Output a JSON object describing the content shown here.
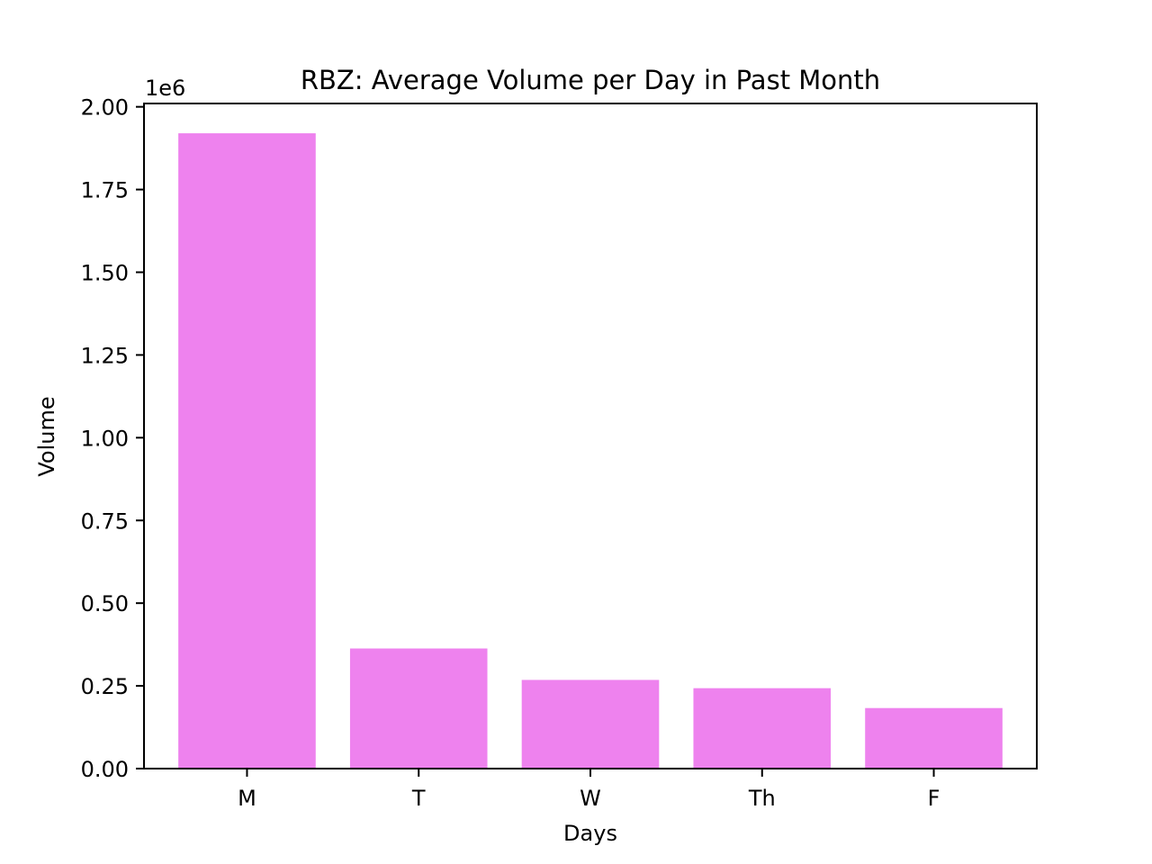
{
  "chart_data": {
    "type": "bar",
    "title": "RBZ: Average Volume per Day in Past Month",
    "xlabel": "Days",
    "ylabel": "Volume",
    "categories": [
      "M",
      "T",
      "W",
      "Th",
      "F"
    ],
    "values": [
      1920000,
      363000,
      268000,
      243000,
      183000
    ],
    "ylim": [
      0,
      2010000
    ],
    "yticks": [
      0,
      250000,
      500000,
      750000,
      1000000,
      1250000,
      1500000,
      1750000,
      2000000
    ],
    "ytick_labels": [
      "0.00",
      "0.25",
      "0.50",
      "0.75",
      "1.00",
      "1.25",
      "1.50",
      "1.75",
      "2.00"
    ],
    "y_offset_label": "1e6",
    "grid": false,
    "legend": "none",
    "bar_color": "#ee82ee",
    "spine_color": "#000000"
  }
}
